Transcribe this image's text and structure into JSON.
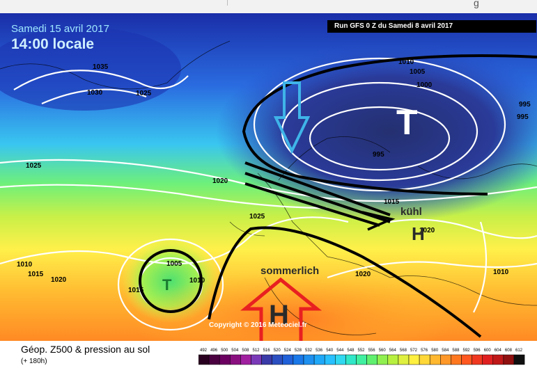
{
  "browser": {
    "partial_text": "g"
  },
  "header": {
    "date": "Samedi 15 avril 2017",
    "time": "14:00 locale",
    "run": "Run GFS 0 Z du Samedi 8 avril 2017"
  },
  "pressure_labels": [
    "1035",
    "1030",
    "1025",
    "1025",
    "1020",
    "1025",
    "1010",
    "1005",
    "1000",
    "995",
    "995",
    "995",
    "1015",
    "1020",
    "1020",
    "1010",
    "1015",
    "1020",
    "1005",
    "1015",
    "1010",
    "1010",
    "1015"
  ],
  "systems": {
    "low_north": "T",
    "low_atlantic": "T",
    "high_south": "H",
    "high_east": "H"
  },
  "annotations": {
    "cool": "kühl",
    "summery": "sommerlich"
  },
  "copyright": "Copyright © 2016 Meteociel.fr",
  "footer": {
    "title": "Géop. Z500 & pression au sol",
    "subtitle": "(+ 180h)",
    "scale_labels": [
      "492",
      "496",
      "500",
      "504",
      "508",
      "512",
      "516",
      "520",
      "524",
      "528",
      "532",
      "536",
      "540",
      "544",
      "548",
      "552",
      "556",
      "560",
      "564",
      "568",
      "572",
      "576",
      "580",
      "584",
      "588",
      "592",
      "596",
      "600",
      "604",
      "608",
      "612"
    ],
    "scale_colors": [
      "#2a0020",
      "#4b0040",
      "#6b0060",
      "#8a1080",
      "#a020a0",
      "#7a3ab8",
      "#3a3aa8",
      "#2b4fc0",
      "#2060d8",
      "#1a78e8",
      "#1e90f0",
      "#20a8f8",
      "#28c0ff",
      "#30d8f0",
      "#30e8c8",
      "#40f0a0",
      "#60f070",
      "#90f050",
      "#b8f040",
      "#e0f040",
      "#fff040",
      "#ffd838",
      "#ffb830",
      "#ff9828",
      "#ff7820",
      "#ff5820",
      "#f03820",
      "#e02020",
      "#c01818",
      "#901010",
      "#101010"
    ]
  },
  "colors": {
    "deep_blue": "#1a2ea8",
    "mid_blue": "#2a6be0",
    "cyan": "#39c6f0",
    "green": "#6ef07a",
    "yellow": "#fff04a",
    "orange": "#ff9a2a",
    "arrow_red": "#e82020",
    "arrow_blue": "#3fb4e8"
  }
}
